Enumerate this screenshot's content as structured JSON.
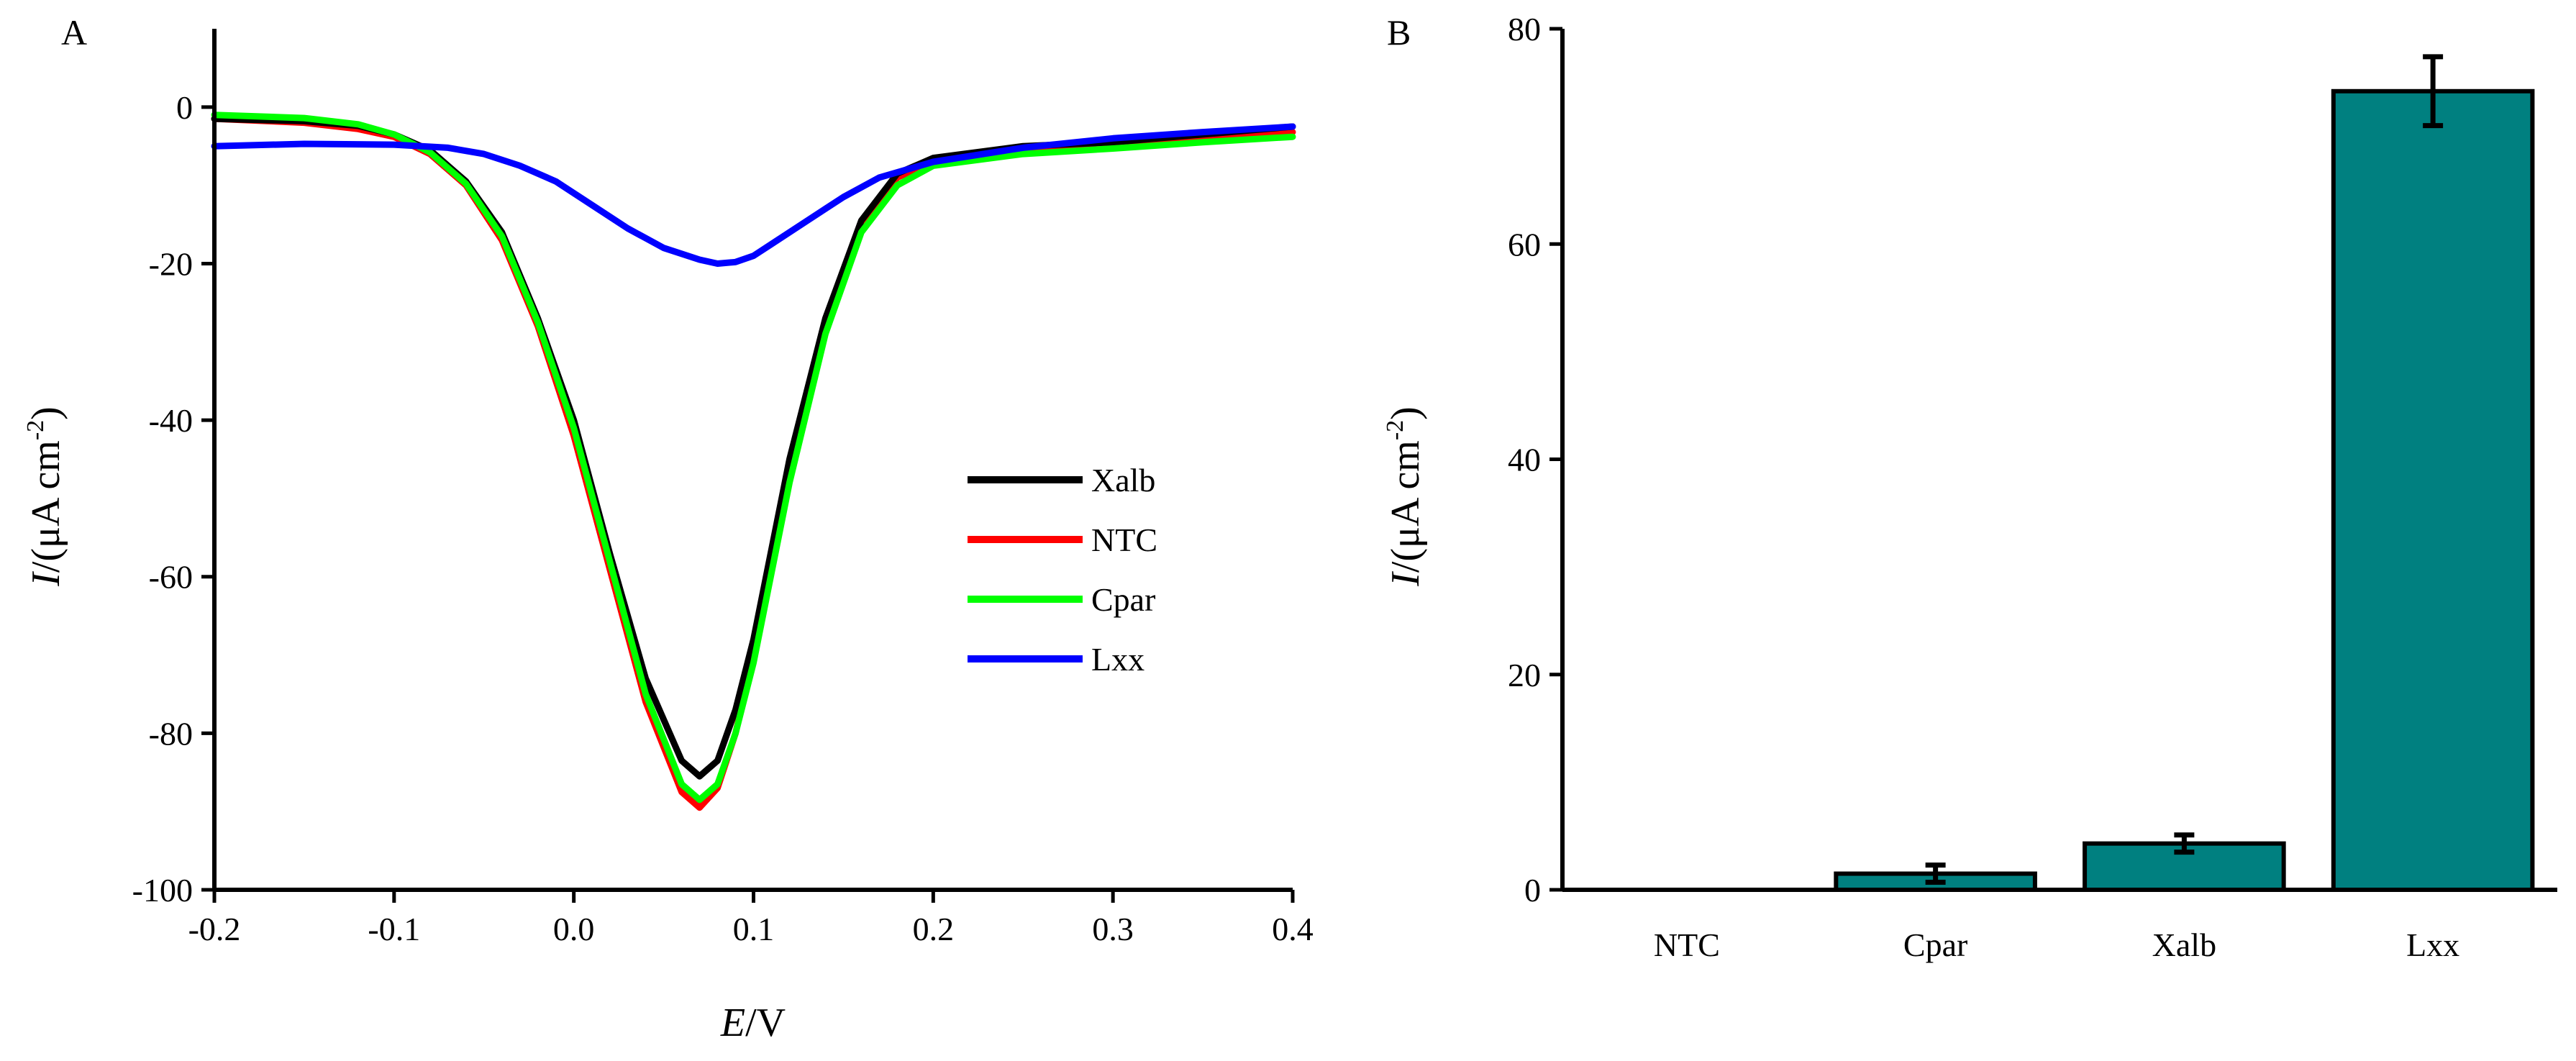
{
  "chart_data": [
    {
      "type": "line",
      "panel_label": "A",
      "xlabel_italic": "E",
      "xlabel_rest": "/V",
      "ylabel_italic": "I",
      "ylabel_rest": "/(μA cm",
      "ylabel_sup": "-2",
      "ylabel_close": ")",
      "xlim": [
        -0.2,
        0.4
      ],
      "ylim": [
        -100,
        10
      ],
      "xticks": [
        -0.2,
        -0.1,
        0.0,
        0.1,
        0.2,
        0.3,
        0.4
      ],
      "xtick_labels": [
        "-0.2",
        "-0.1",
        "0.0",
        "0.1",
        "0.2",
        "0.3",
        "0.4"
      ],
      "yticks": [
        -100,
        -80,
        -60,
        -40,
        -20,
        0
      ],
      "ytick_labels": [
        "-100",
        "-80",
        "-60",
        "-40",
        "-20",
        "0"
      ],
      "legend_position": "right-middle",
      "grid": false,
      "series": [
        {
          "name": "NTC",
          "color": "#ff0000",
          "x": [
            -0.2,
            -0.15,
            -0.12,
            -0.1,
            -0.08,
            -0.06,
            -0.04,
            -0.02,
            0.0,
            0.02,
            0.04,
            0.06,
            0.07,
            0.08,
            0.09,
            0.1,
            0.12,
            0.14,
            0.16,
            0.18,
            0.2,
            0.25,
            0.3,
            0.35,
            0.4
          ],
          "y": [
            -1.5,
            -2.0,
            -2.8,
            -3.8,
            -6.0,
            -10.0,
            -17.0,
            -28.0,
            -42.0,
            -59.0,
            -76.0,
            -87.5,
            -89.5,
            -87.0,
            -80.0,
            -70.0,
            -47.0,
            -28.0,
            -15.0,
            -9.0,
            -7.0,
            -5.5,
            -4.8,
            -4.0,
            -3.2
          ]
        },
        {
          "name": "Xalb",
          "color": "#000000",
          "x": [
            -0.2,
            -0.15,
            -0.12,
            -0.1,
            -0.08,
            -0.06,
            -0.04,
            -0.02,
            0.0,
            0.02,
            0.04,
            0.06,
            0.07,
            0.08,
            0.09,
            0.1,
            0.12,
            0.14,
            0.16,
            0.18,
            0.2,
            0.25,
            0.3,
            0.35,
            0.4
          ],
          "y": [
            -1.5,
            -1.8,
            -2.4,
            -3.5,
            -5.5,
            -9.5,
            -16.0,
            -27.0,
            -40.0,
            -57.0,
            -73.0,
            -83.5,
            -85.5,
            -83.5,
            -77.0,
            -68.0,
            -45.0,
            -27.0,
            -14.5,
            -8.5,
            -6.5,
            -5.0,
            -4.5,
            -3.5,
            -2.5
          ]
        },
        {
          "name": "Cpar",
          "color": "#00ff00",
          "x": [
            -0.2,
            -0.15,
            -0.12,
            -0.1,
            -0.08,
            -0.06,
            -0.04,
            -0.02,
            0.0,
            0.02,
            0.04,
            0.06,
            0.07,
            0.08,
            0.09,
            0.1,
            0.12,
            0.14,
            0.16,
            0.18,
            0.2,
            0.25,
            0.3,
            0.35,
            0.4
          ],
          "y": [
            -1.0,
            -1.4,
            -2.2,
            -3.5,
            -5.8,
            -9.8,
            -16.5,
            -27.5,
            -41.0,
            -58.0,
            -75.0,
            -86.5,
            -88.5,
            -86.5,
            -80.0,
            -71.0,
            -48.0,
            -29.0,
            -16.0,
            -10.0,
            -7.5,
            -6.0,
            -5.3,
            -4.5,
            -3.8
          ]
        },
        {
          "name": "Lxx",
          "color": "#0000ff",
          "x": [
            -0.2,
            -0.15,
            -0.1,
            -0.07,
            -0.05,
            -0.03,
            -0.01,
            0.01,
            0.03,
            0.05,
            0.07,
            0.08,
            0.09,
            0.1,
            0.11,
            0.13,
            0.15,
            0.17,
            0.2,
            0.25,
            0.3,
            0.35,
            0.4
          ],
          "y": [
            -5.0,
            -4.7,
            -4.8,
            -5.2,
            -6.0,
            -7.5,
            -9.5,
            -12.5,
            -15.5,
            -18.0,
            -19.5,
            -20.0,
            -19.8,
            -19.0,
            -17.5,
            -14.5,
            -11.5,
            -9.0,
            -7.0,
            -5.2,
            -4.0,
            -3.2,
            -2.5
          ]
        }
      ]
    },
    {
      "type": "bar",
      "panel_label": "B",
      "ylabel_italic": "I",
      "ylabel_rest": "/(μA cm",
      "ylabel_sup": "-2",
      "ylabel_close": ")",
      "categories": [
        "NTC",
        "Cpar",
        "Xalb",
        "Lxx"
      ],
      "values": [
        0,
        1.5,
        4.3,
        74.2
      ],
      "errors": [
        0,
        0.8,
        0.8,
        3.2
      ],
      "ylim": [
        0,
        80
      ],
      "yticks": [
        0,
        20,
        40,
        60,
        80
      ],
      "ytick_labels": [
        "0",
        "20",
        "40",
        "60",
        "80"
      ],
      "bar_color": "#008080",
      "grid": false
    }
  ]
}
